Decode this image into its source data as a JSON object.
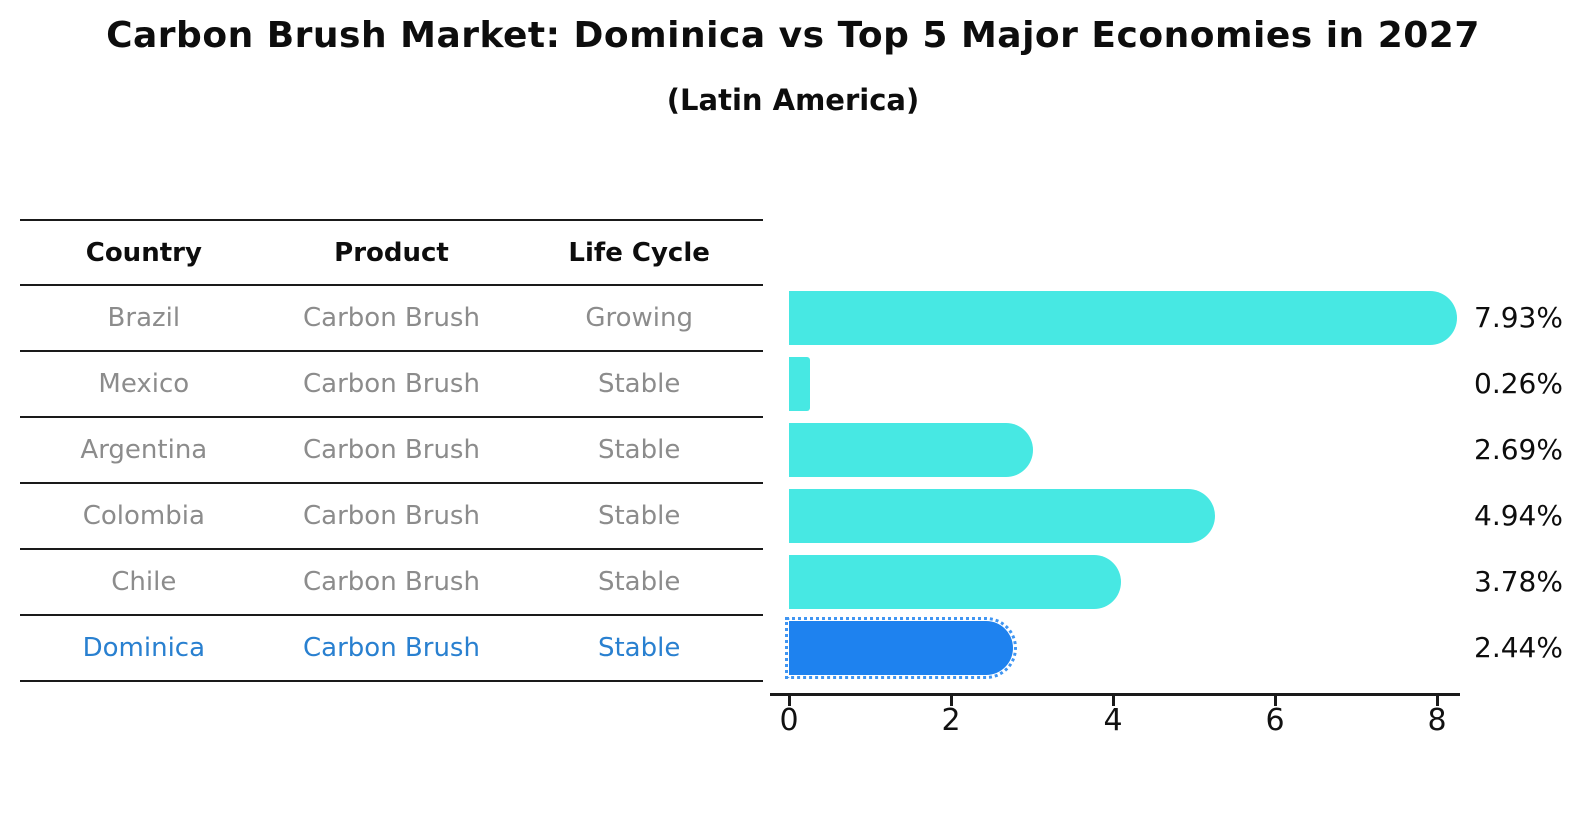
{
  "title": "Carbon Brush Market: Dominica vs Top 5 Major Economies in 2027",
  "subtitle": "(Latin America)",
  "table": {
    "headers": [
      "Country",
      "Product",
      "Life Cycle"
    ],
    "rows": [
      {
        "country": "Brazil",
        "product": "Carbon Brush",
        "life_cycle": "Growing",
        "highlight": false
      },
      {
        "country": "Mexico",
        "product": "Carbon Brush",
        "life_cycle": "Stable",
        "highlight": false
      },
      {
        "country": "Argentina",
        "product": "Carbon Brush",
        "life_cycle": "Stable",
        "highlight": false
      },
      {
        "country": "Colombia",
        "product": "Carbon Brush",
        "life_cycle": "Stable",
        "highlight": false
      },
      {
        "country": "Chile",
        "product": "Carbon Brush",
        "life_cycle": "Stable",
        "highlight": false
      },
      {
        "country": "Dominica",
        "product": "Carbon Brush",
        "life_cycle": "Stable",
        "highlight": true
      }
    ]
  },
  "chart_data": {
    "type": "bar",
    "orientation": "horizontal",
    "title": "Carbon Brush Market: Dominica vs Top 5 Major Economies in 2027",
    "subtitle": "(Latin America)",
    "categories": [
      "Brazil",
      "Mexico",
      "Argentina",
      "Colombia",
      "Chile",
      "Dominica"
    ],
    "values": [
      7.93,
      0.26,
      2.69,
      4.94,
      3.78,
      2.44
    ],
    "value_labels": [
      "7.93%",
      "0.26%",
      "2.69%",
      "4.94%",
      "3.78%",
      "2.44%"
    ],
    "xlabel": "",
    "ylabel": "",
    "xlim": [
      0,
      8.3
    ],
    "xticks": [
      0,
      2,
      4,
      6,
      8
    ],
    "grid": false,
    "legend": null,
    "bar_color": "#47e8e3",
    "highlight_index": 5,
    "highlight_color": "#1e82ef",
    "highlight_text_color": "#2980d0"
  },
  "colors": {
    "accent_cyan": "#47e8e3",
    "accent_blue": "#1e82ef",
    "table_line": "#1a1a1a",
    "text_dark": "#0d0d0d",
    "text_muted": "#8c8c8c"
  }
}
